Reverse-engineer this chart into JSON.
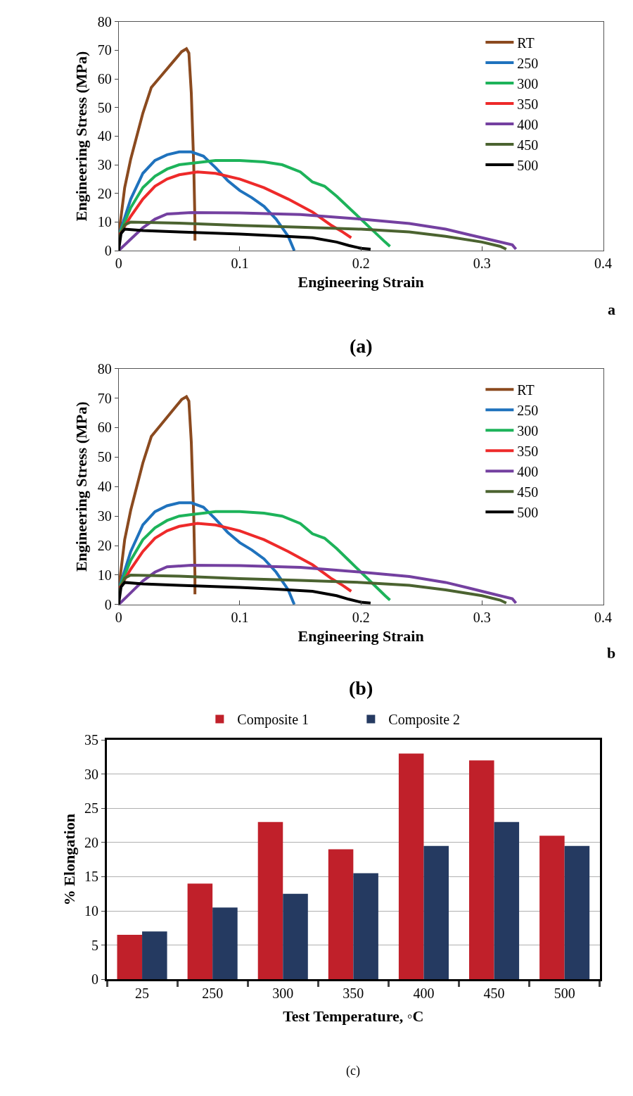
{
  "chart_data": [
    {
      "type": "line",
      "xlabel": "Engineering Strain",
      "ylabel": "Engineering Stress (MPa)",
      "annotations": [
        "a",
        "(a)"
      ],
      "xlim": [
        0,
        0.4
      ],
      "xticks": [
        0,
        0.1,
        0.2,
        0.3,
        0.4
      ],
      "ylim": [
        0,
        80
      ],
      "yticks": [
        0,
        10,
        20,
        30,
        40,
        50,
        60,
        70,
        80
      ],
      "grid": false,
      "legend": "top right",
      "marker": "none",
      "line_style": "solid",
      "series": [
        {
          "name": "RT",
          "color": "#8b4a1f",
          "x": [
            0,
            0.005,
            0.01,
            0.02,
            0.027,
            0.035,
            0.045,
            0.052,
            0.056,
            0.058,
            0.06,
            0.062,
            0.063,
            0.063
          ],
          "values": [
            5,
            22,
            32,
            48,
            57,
            61,
            66,
            69.5,
            70.5,
            69,
            55,
            30,
            10,
            3.5
          ]
        },
        {
          "name": "250",
          "color": "#1f72bd",
          "x": [
            0,
            0.01,
            0.02,
            0.03,
            0.04,
            0.05,
            0.06,
            0.07,
            0.08,
            0.09,
            0.1,
            0.11,
            0.12,
            0.13,
            0.14,
            0.145
          ],
          "values": [
            5,
            18,
            27,
            31.5,
            33.5,
            34.5,
            34.5,
            33,
            29,
            24.5,
            21,
            18.5,
            15.5,
            11,
            5,
            0
          ]
        },
        {
          "name": "300",
          "color": "#1db35a",
          "x": [
            0,
            0.01,
            0.02,
            0.03,
            0.04,
            0.05,
            0.06,
            0.07,
            0.08,
            0.1,
            0.12,
            0.135,
            0.15,
            0.16,
            0.17,
            0.18,
            0.19,
            0.2,
            0.21,
            0.22,
            0.224
          ],
          "values": [
            5,
            15,
            22,
            26,
            28.5,
            30,
            30.5,
            31,
            31.5,
            31.5,
            31,
            30,
            27.5,
            24,
            22.5,
            19,
            15,
            11,
            7,
            3,
            1.5
          ]
        },
        {
          "name": "350",
          "color": "#ee2a2a",
          "x": [
            0,
            0.01,
            0.02,
            0.03,
            0.04,
            0.05,
            0.065,
            0.08,
            0.1,
            0.12,
            0.14,
            0.16,
            0.175,
            0.185,
            0.192
          ],
          "values": [
            5,
            12,
            18,
            22.5,
            25,
            26.5,
            27.5,
            27,
            25,
            22,
            18,
            13.5,
            9,
            6.5,
            4.5
          ]
        },
        {
          "name": "400",
          "color": "#7440a0",
          "x": [
            0,
            0.01,
            0.02,
            0.03,
            0.04,
            0.06,
            0.1,
            0.15,
            0.2,
            0.24,
            0.27,
            0.29,
            0.31,
            0.325,
            0.328
          ],
          "values": [
            0,
            4,
            8,
            11,
            12.8,
            13.3,
            13.2,
            12.6,
            11,
            9.5,
            7.5,
            5.5,
            3.5,
            2,
            0.5
          ]
        },
        {
          "name": "450",
          "color": "#4b6330",
          "x": [
            0,
            0.005,
            0.01,
            0.05,
            0.1,
            0.15,
            0.2,
            0.24,
            0.27,
            0.3,
            0.315,
            0.32
          ],
          "values": [
            4,
            9,
            10,
            9.6,
            8.8,
            8.2,
            7.5,
            6.5,
            5,
            3,
            1.5,
            0.5
          ]
        },
        {
          "name": "500",
          "color": "#000000",
          "x": [
            0,
            0.002,
            0.005,
            0.02,
            0.05,
            0.1,
            0.13,
            0.16,
            0.18,
            0.19,
            0.2,
            0.208
          ],
          "values": [
            0,
            6,
            7.5,
            7,
            6.5,
            5.8,
            5.2,
            4.5,
            3,
            1.8,
            0.8,
            0.5
          ]
        }
      ]
    },
    {
      "type": "line",
      "xlabel": "Engineering Strain",
      "ylabel": "Engineering Stress (MPa)",
      "annotations": [
        "b",
        "(b)"
      ],
      "xlim": [
        0,
        0.4
      ],
      "xticks": [
        0,
        0.1,
        0.2,
        0.3,
        0.4
      ],
      "ylim": [
        0,
        80
      ],
      "yticks": [
        0,
        10,
        20,
        30,
        40,
        50,
        60,
        70,
        80
      ],
      "grid": false,
      "legend": "top right",
      "marker": "none",
      "line_style": "solid",
      "series": [
        {
          "name": "RT",
          "color": "#8b4a1f",
          "x": [
            0,
            0.005,
            0.01,
            0.02,
            0.027,
            0.035,
            0.045,
            0.052,
            0.056,
            0.058,
            0.06,
            0.062,
            0.063,
            0.063
          ],
          "values": [
            5,
            22,
            32,
            48,
            57,
            61,
            66,
            69.5,
            70.5,
            69,
            55,
            30,
            10,
            3.5
          ]
        },
        {
          "name": "250",
          "color": "#1f72bd",
          "x": [
            0,
            0.01,
            0.02,
            0.03,
            0.04,
            0.05,
            0.06,
            0.07,
            0.08,
            0.09,
            0.1,
            0.11,
            0.12,
            0.13,
            0.14,
            0.145
          ],
          "values": [
            5,
            18,
            27,
            31.5,
            33.5,
            34.5,
            34.5,
            33,
            29,
            24.5,
            21,
            18.5,
            15.5,
            11,
            5,
            0
          ]
        },
        {
          "name": "300",
          "color": "#1db35a",
          "x": [
            0,
            0.01,
            0.02,
            0.03,
            0.04,
            0.05,
            0.06,
            0.07,
            0.08,
            0.1,
            0.12,
            0.135,
            0.15,
            0.16,
            0.17,
            0.18,
            0.19,
            0.2,
            0.21,
            0.22,
            0.224
          ],
          "values": [
            5,
            15,
            22,
            26,
            28.5,
            30,
            30.5,
            31,
            31.5,
            31.5,
            31,
            30,
            27.5,
            24,
            22.5,
            19,
            15,
            11,
            7,
            3,
            1.5
          ]
        },
        {
          "name": "350",
          "color": "#ee2a2a",
          "x": [
            0,
            0.01,
            0.02,
            0.03,
            0.04,
            0.05,
            0.065,
            0.08,
            0.1,
            0.12,
            0.14,
            0.16,
            0.175,
            0.185,
            0.192
          ],
          "values": [
            5,
            12,
            18,
            22.5,
            25,
            26.5,
            27.5,
            27,
            25,
            22,
            18,
            13.5,
            9,
            6.5,
            4.5
          ]
        },
        {
          "name": "400",
          "color": "#7440a0",
          "x": [
            0,
            0.01,
            0.02,
            0.03,
            0.04,
            0.06,
            0.1,
            0.15,
            0.2,
            0.24,
            0.27,
            0.29,
            0.31,
            0.325,
            0.328
          ],
          "values": [
            0,
            4,
            8,
            11,
            12.8,
            13.3,
            13.2,
            12.6,
            11,
            9.5,
            7.5,
            5.5,
            3.5,
            2,
            0.5
          ]
        },
        {
          "name": "450",
          "color": "#4b6330",
          "x": [
            0,
            0.005,
            0.01,
            0.05,
            0.1,
            0.15,
            0.2,
            0.24,
            0.27,
            0.3,
            0.315,
            0.32
          ],
          "values": [
            4,
            9,
            10,
            9.6,
            8.8,
            8.2,
            7.5,
            6.5,
            5,
            3,
            1.5,
            0.5
          ]
        },
        {
          "name": "500",
          "color": "#000000",
          "x": [
            0,
            0.002,
            0.005,
            0.02,
            0.05,
            0.1,
            0.13,
            0.16,
            0.18,
            0.19,
            0.2,
            0.208
          ],
          "values": [
            0,
            6,
            7.5,
            7,
            6.5,
            5.8,
            5.2,
            4.5,
            3,
            1.8,
            0.8,
            0.5
          ]
        }
      ]
    },
    {
      "type": "bar",
      "xlabel": "Test Temperature, ◦C",
      "ylabel": "% Elongation",
      "annotations": [
        "(c)"
      ],
      "categories": [
        "25",
        "250",
        "300",
        "350",
        "400",
        "450",
        "500"
      ],
      "ylim": [
        0,
        35
      ],
      "yticks": [
        0,
        5,
        10,
        15,
        20,
        25,
        30,
        35
      ],
      "grid": "y",
      "legend": "top",
      "series": [
        {
          "name": "Composite 1",
          "color": "#c0202a",
          "values": [
            6.5,
            14,
            23,
            19,
            33,
            32,
            21
          ]
        },
        {
          "name": "Composite 2",
          "color": "#253a61",
          "values": [
            7,
            10.5,
            12.5,
            15.5,
            19.5,
            23,
            19.5
          ]
        }
      ]
    }
  ]
}
